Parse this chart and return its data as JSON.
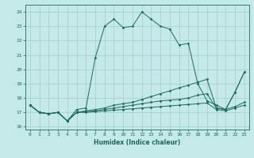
{
  "title": "",
  "xlabel": "Humidex (Indice chaleur)",
  "xlim": [
    -0.5,
    23.5
  ],
  "ylim": [
    15.8,
    24.5
  ],
  "yticks": [
    16,
    17,
    18,
    19,
    20,
    21,
    22,
    23,
    24
  ],
  "xticks": [
    0,
    1,
    2,
    3,
    4,
    5,
    6,
    7,
    8,
    9,
    10,
    11,
    12,
    13,
    14,
    15,
    16,
    17,
    18,
    19,
    20,
    21,
    22,
    23
  ],
  "bg_color": "#c5e8e8",
  "grid_color": "#9ecece",
  "line_color": "#1a6b5a",
  "series": [
    {
      "x": [
        0,
        1,
        2,
        3,
        4,
        5,
        6,
        7,
        8,
        9,
        10,
        11,
        12,
        13,
        14,
        15,
        16,
        17,
        18,
        19,
        20,
        21,
        22,
        23
      ],
      "y": [
        17.5,
        17.0,
        16.9,
        17.0,
        16.4,
        17.2,
        17.3,
        20.8,
        23.0,
        23.5,
        22.9,
        23.0,
        24.0,
        23.5,
        23.0,
        22.8,
        21.7,
        21.8,
        19.0,
        17.8,
        17.5,
        17.2,
        18.4,
        19.8
      ]
    },
    {
      "x": [
        0,
        1,
        2,
        3,
        4,
        5,
        6,
        7,
        8,
        9,
        10,
        11,
        12,
        13,
        14,
        15,
        16,
        17,
        18,
        19,
        20,
        21,
        22,
        23
      ],
      "y": [
        17.5,
        17.0,
        16.9,
        17.0,
        16.4,
        17.0,
        17.1,
        17.2,
        17.3,
        17.5,
        17.6,
        17.7,
        17.9,
        18.1,
        18.3,
        18.5,
        18.7,
        18.9,
        19.1,
        19.3,
        17.3,
        17.2,
        18.4,
        19.8
      ]
    },
    {
      "x": [
        0,
        1,
        2,
        3,
        4,
        5,
        6,
        7,
        8,
        9,
        10,
        11,
        12,
        13,
        14,
        15,
        16,
        17,
        18,
        19,
        20,
        21,
        22,
        23
      ],
      "y": [
        17.5,
        17.0,
        16.9,
        17.0,
        16.4,
        17.0,
        17.05,
        17.1,
        17.2,
        17.3,
        17.4,
        17.5,
        17.6,
        17.7,
        17.8,
        17.85,
        17.9,
        18.0,
        18.2,
        18.3,
        17.3,
        17.2,
        17.4,
        17.7
      ]
    },
    {
      "x": [
        0,
        1,
        2,
        3,
        4,
        5,
        6,
        7,
        8,
        9,
        10,
        11,
        12,
        13,
        14,
        15,
        16,
        17,
        18,
        19,
        20,
        21,
        22,
        23
      ],
      "y": [
        17.5,
        17.0,
        16.9,
        17.0,
        16.4,
        17.0,
        17.0,
        17.05,
        17.1,
        17.15,
        17.2,
        17.25,
        17.3,
        17.35,
        17.4,
        17.45,
        17.5,
        17.55,
        17.6,
        17.65,
        17.2,
        17.1,
        17.3,
        17.5
      ]
    }
  ]
}
